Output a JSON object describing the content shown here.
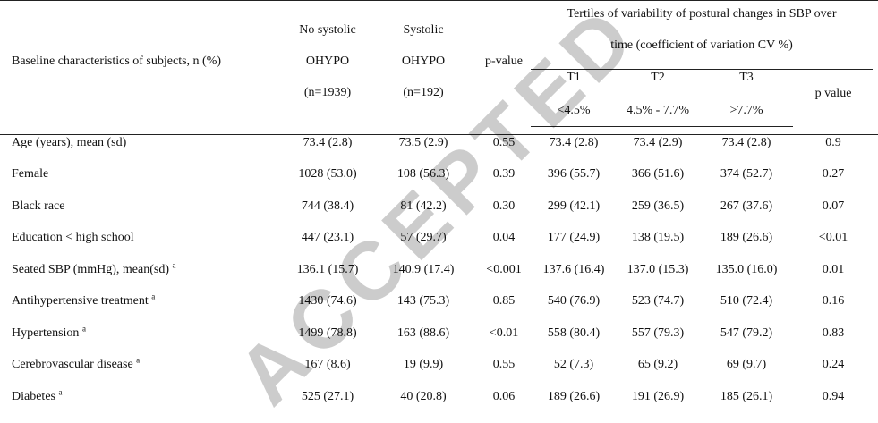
{
  "header": {
    "baseline_label": "Baseline characteristics of subjects, n (%)",
    "no_sys_line1": "No systolic",
    "no_sys_line2": "OHYPO",
    "no_sys_n": "(n=1939)",
    "sys_line1": "Systolic",
    "sys_line2": "OHYPO",
    "sys_n": "(n=192)",
    "pvalue": "p-value",
    "tertiles_line1": "Tertiles of variability of postural changes in SBP over",
    "tertiles_line2": "time (coefficient of variation CV %)",
    "t1": "T1",
    "t2": "T2",
    "t3": "T3",
    "t1_range": "<4.5%",
    "t2_range": "4.5% - 7.7%",
    "t3_range": ">7.7%",
    "pvalue2": "p value"
  },
  "rows": [
    {
      "label": "Age (years), mean (sd)",
      "sup": "",
      "cells": [
        "73.4 (2.8)",
        "73.5 (2.9)",
        "0.55",
        "73.4 (2.8)",
        "73.4 (2.9)",
        "73.4 (2.8)",
        "0.9"
      ]
    },
    {
      "label": "Female",
      "sup": "",
      "cells": [
        "1028 (53.0)",
        "108 (56.3)",
        "0.39",
        "396 (55.7)",
        "366 (51.6)",
        "374 (52.7)",
        "0.27"
      ]
    },
    {
      "label": "Black race",
      "sup": "",
      "cells": [
        "744 (38.4)",
        "81 (42.2)",
        "0.30",
        "299 (42.1)",
        "259 (36.5)",
        "267 (37.6)",
        "0.07"
      ]
    },
    {
      "label": "Education < high school",
      "sup": "",
      "cells": [
        "447 (23.1)",
        "57 (29.7)",
        "0.04",
        "177 (24.9)",
        "138 (19.5)",
        "189 (26.6)",
        "<0.01"
      ]
    },
    {
      "label": "Seated SBP (mmHg), mean(sd)",
      "sup": "a",
      "cells": [
        "136.1 (15.7)",
        "140.9 (17.4)",
        "<0.001",
        "137.6 (16.4)",
        "137.0 (15.3)",
        "135.0 (16.0)",
        "0.01"
      ]
    },
    {
      "label": "Antihypertensive treatment",
      "sup": "a",
      "cells": [
        "1430 (74.6)",
        "143 (75.3)",
        "0.85",
        "540 (76.9)",
        "523 (74.7)",
        "510 (72.4)",
        "0.16"
      ]
    },
    {
      "label": "Hypertension",
      "sup": "a",
      "cells": [
        "1499 (78.8)",
        "163 (88.6)",
        "<0.01",
        "558 (80.4)",
        "557 (79.3)",
        "547 (79.2)",
        "0.83"
      ]
    },
    {
      "label": "Cerebrovascular disease",
      "sup": "a",
      "cells": [
        "167 (8.6)",
        "19 (9.9)",
        "0.55",
        "52 (7.3)",
        "65 (9.2)",
        "69 (9.7)",
        "0.24"
      ]
    },
    {
      "label": "Diabetes",
      "sup": "a",
      "cells": [
        "525 (27.1)",
        "40 (20.8)",
        "0.06",
        "189 (26.6)",
        "191 (26.9)",
        "185 (26.1)",
        "0.94"
      ]
    }
  ],
  "watermark": "ACCEPTED"
}
